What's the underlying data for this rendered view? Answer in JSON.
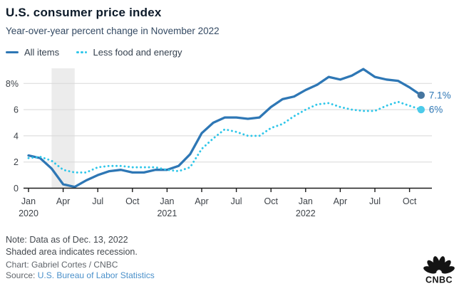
{
  "header": {
    "title": "U.S. consumer price index",
    "subtitle": "Year-over-year percent change in November 2022"
  },
  "chart_data": {
    "type": "line",
    "x_unit": "month",
    "categories": [
      "Jan 2020",
      "Feb 2020",
      "Mar 2020",
      "Apr 2020",
      "May 2020",
      "Jun 2020",
      "Jul 2020",
      "Aug 2020",
      "Sep 2020",
      "Oct 2020",
      "Nov 2020",
      "Dec 2020",
      "Jan 2021",
      "Feb 2021",
      "Mar 2021",
      "Apr 2021",
      "May 2021",
      "Jun 2021",
      "Jul 2021",
      "Aug 2021",
      "Sep 2021",
      "Oct 2021",
      "Nov 2021",
      "Dec 2021",
      "Jan 2022",
      "Feb 2022",
      "Mar 2022",
      "Apr 2022",
      "May 2022",
      "Jun 2022",
      "Jul 2022",
      "Aug 2022",
      "Sep 2022",
      "Oct 2022",
      "Nov 2022"
    ],
    "series": [
      {
        "name": "All items",
        "style": "solid",
        "color": "#2e77b5",
        "dot_color": "#46759f",
        "end_label": "7.1%",
        "values": [
          2.5,
          2.3,
          1.5,
          0.3,
          0.1,
          0.6,
          1.0,
          1.3,
          1.4,
          1.2,
          1.2,
          1.4,
          1.4,
          1.7,
          2.6,
          4.2,
          5.0,
          5.4,
          5.4,
          5.3,
          5.4,
          6.2,
          6.8,
          7.0,
          7.5,
          7.9,
          8.5,
          8.3,
          8.6,
          9.1,
          8.5,
          8.3,
          8.2,
          7.7,
          7.1
        ]
      },
      {
        "name": "Less food and energy",
        "style": "dotted",
        "color": "#2fc6e9",
        "dot_color": "#4ccbea",
        "end_label": "6%",
        "values": [
          2.3,
          2.4,
          2.1,
          1.4,
          1.2,
          1.2,
          1.6,
          1.7,
          1.7,
          1.6,
          1.6,
          1.6,
          1.4,
          1.3,
          1.6,
          3.0,
          3.8,
          4.5,
          4.3,
          4.0,
          4.0,
          4.6,
          4.9,
          5.5,
          6.0,
          6.4,
          6.5,
          6.2,
          6.0,
          5.9,
          5.9,
          6.3,
          6.6,
          6.3,
          6.0
        ]
      }
    ],
    "y_ticks": [
      {
        "value": 0,
        "label": "0"
      },
      {
        "value": 2,
        "label": "2"
      },
      {
        "value": 4,
        "label": "4"
      },
      {
        "value": 6,
        "label": "6"
      },
      {
        "value": 8,
        "label": "8%"
      }
    ],
    "x_ticks": [
      {
        "month_index": 0,
        "label": "Jan",
        "year": "2020"
      },
      {
        "month_index": 3,
        "label": "Apr"
      },
      {
        "month_index": 6,
        "label": "Jul"
      },
      {
        "month_index": 9,
        "label": "Oct"
      },
      {
        "month_index": 12,
        "label": "Jan",
        "year": "2021"
      },
      {
        "month_index": 15,
        "label": "Apr"
      },
      {
        "month_index": 18,
        "label": "Jul"
      },
      {
        "month_index": 21,
        "label": "Oct"
      },
      {
        "month_index": 24,
        "label": "Jan",
        "year": "2022"
      },
      {
        "month_index": 27,
        "label": "Apr"
      },
      {
        "month_index": 30,
        "label": "Jul"
      },
      {
        "month_index": 33,
        "label": "Oct"
      }
    ],
    "ylim": [
      0,
      9.5
    ],
    "grid": "horizontal",
    "legend_position": "top-left",
    "recession_band": {
      "start_month_index": 2,
      "end_month_index": 4,
      "meaning": "recession"
    }
  },
  "footer": {
    "note_line1": "Note: Data as of Dec. 13, 2022",
    "note_line2": "Shaded area indicates recession.",
    "credit": "Chart: Gabriel Cortes / CNBC",
    "source_label": "Source: ",
    "source_link": "U.S. Bureau of Labor Statistics"
  },
  "logo": {
    "brand": "CNBC"
  },
  "colors": {
    "accent_blue": "#2e77b5",
    "accent_cyan": "#2fc6e9",
    "end_label_blue": "#2e77b5",
    "grid": "#d8d8d8",
    "axis": "#1b1b1b",
    "recession_band": "#ececec",
    "link": "#4a90ca",
    "logo_black": "#141414"
  }
}
